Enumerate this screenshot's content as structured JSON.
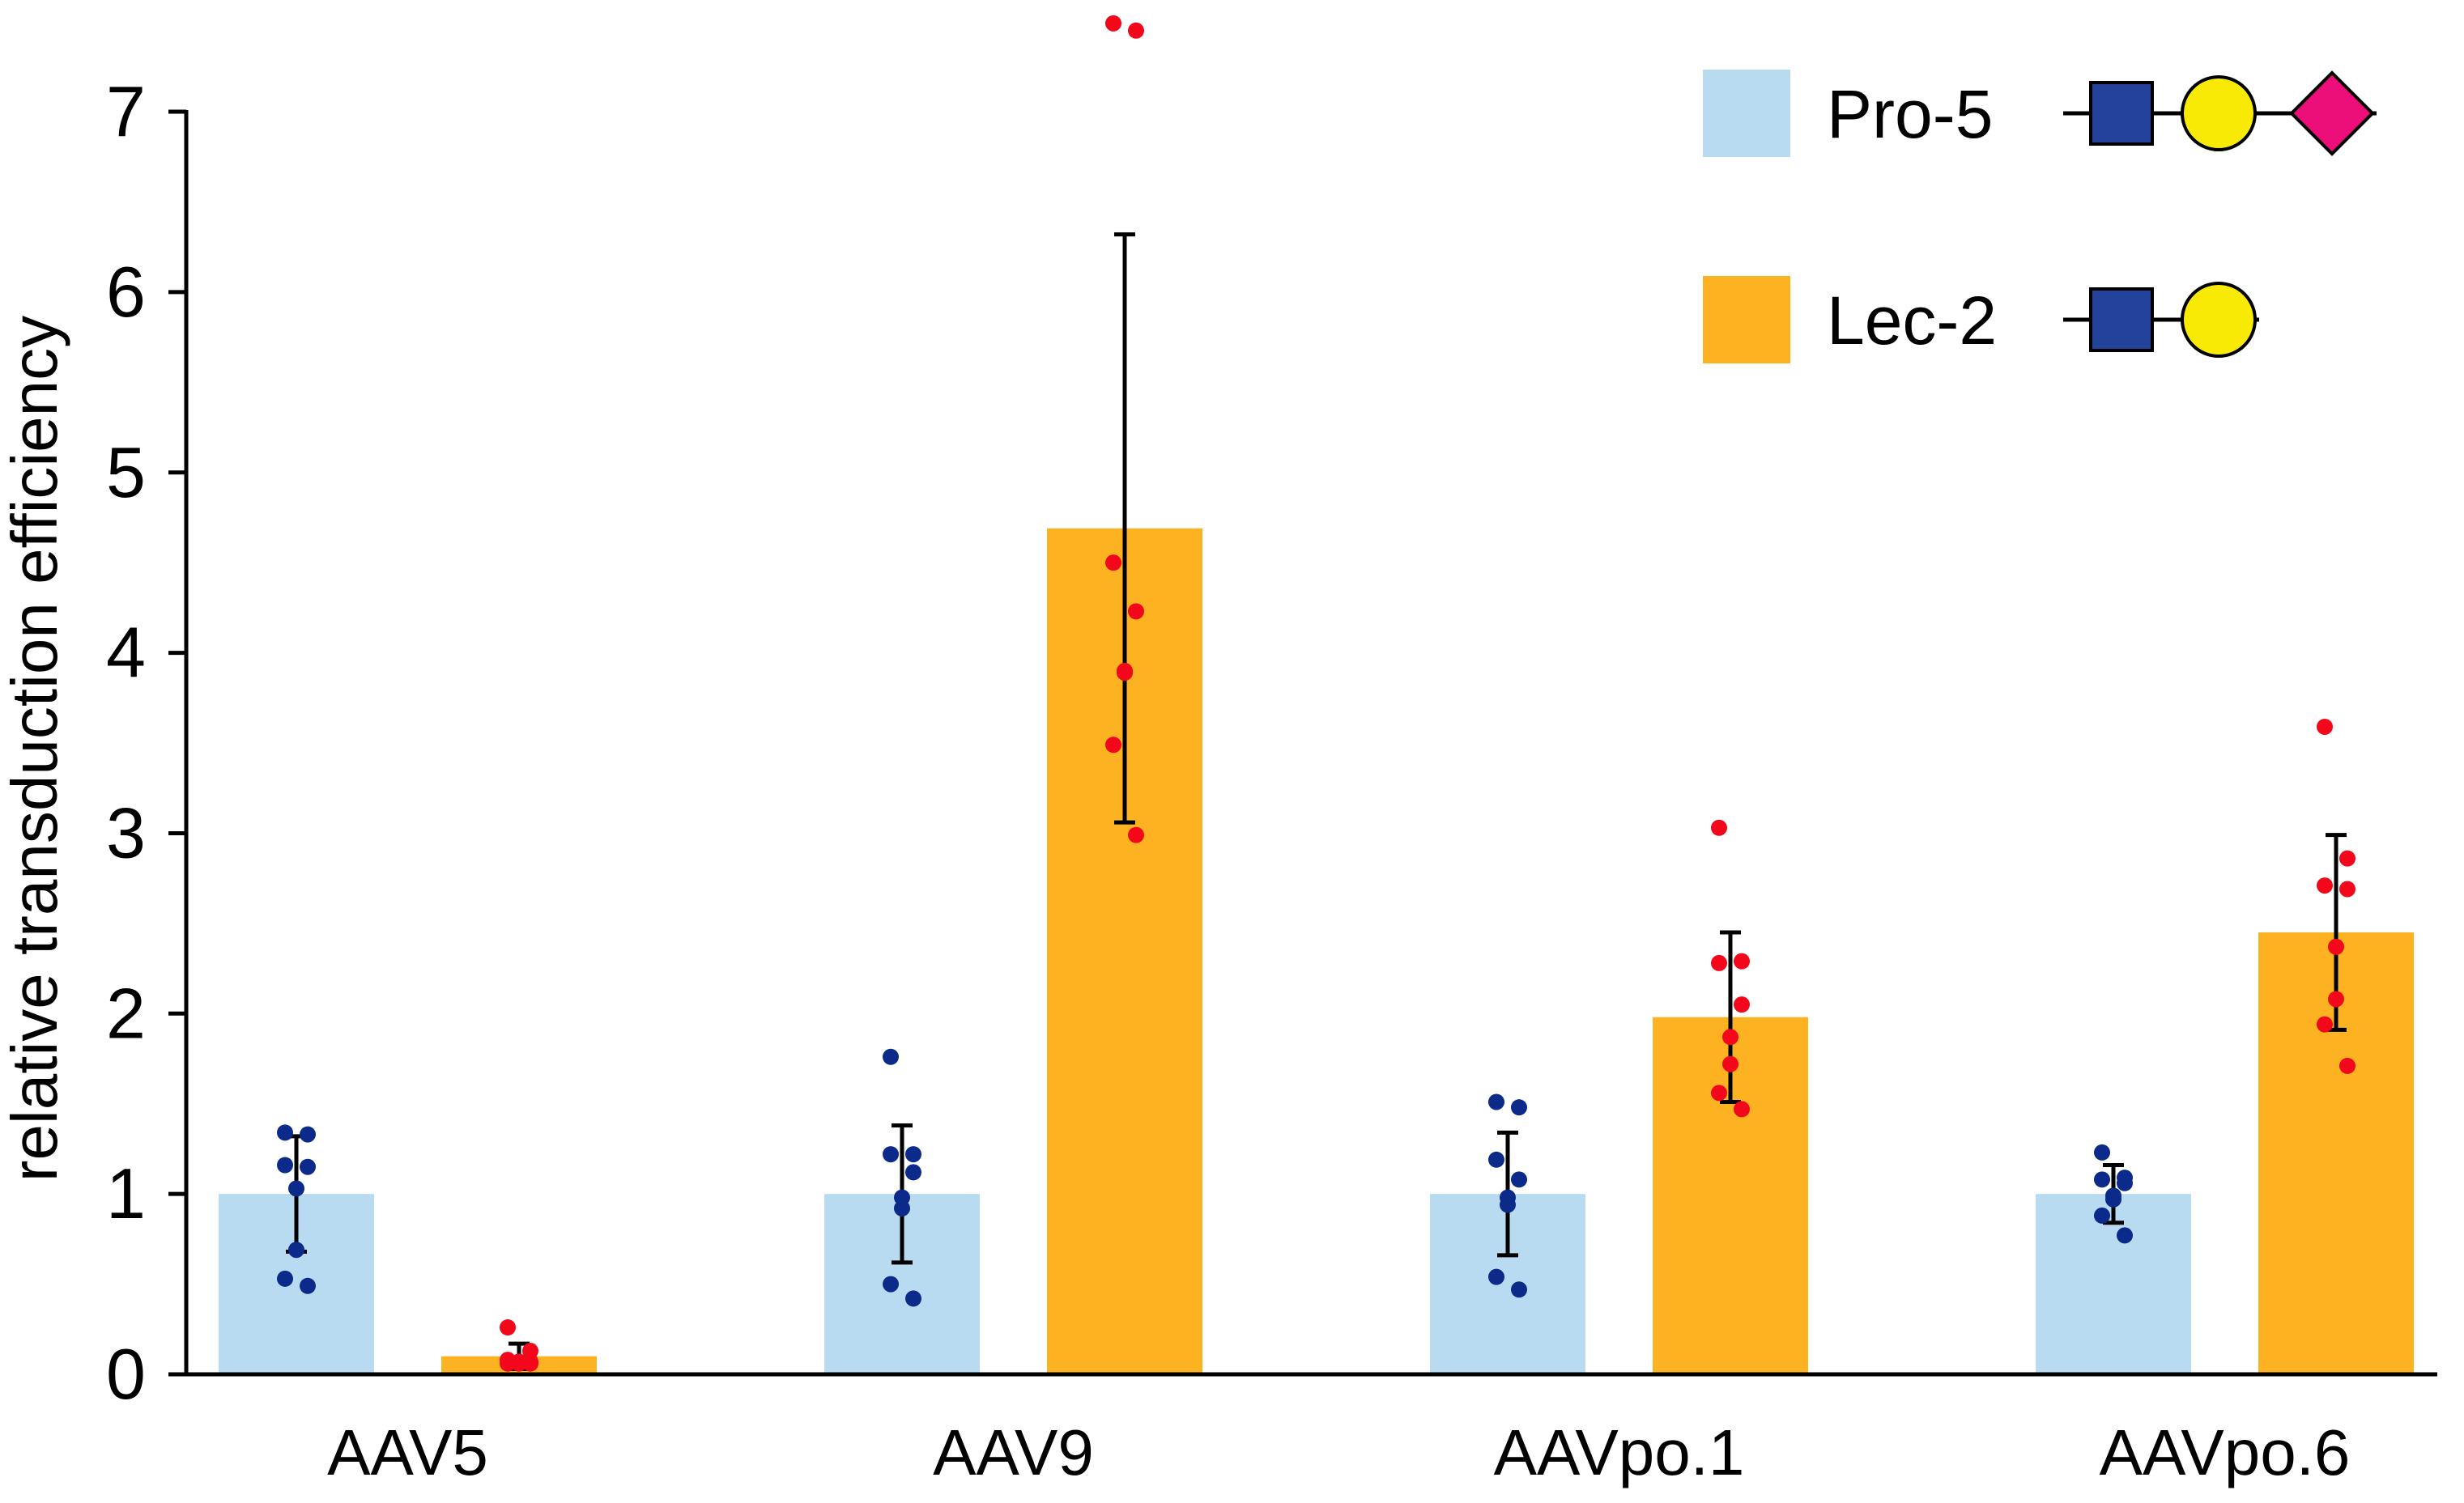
{
  "chart_data": {
    "type": "bar",
    "title": "",
    "xlabel": "",
    "ylabel": "relative transduction efficiency",
    "ylim": [
      0,
      7
    ],
    "yticks": [
      0,
      1,
      2,
      3,
      4,
      5,
      6,
      7
    ],
    "grid": false,
    "legend_position": "top-right",
    "categories": [
      "AAV5",
      "AAV9",
      "AAVpo.1",
      "AAVpo.6"
    ],
    "series": [
      {
        "name": "Pro-5",
        "color": "#b8dbf1",
        "point_color": "#0b2a8a",
        "glycan": [
          "square",
          "circle",
          "diamond"
        ],
        "values": [
          1.0,
          1.0,
          1.0,
          1.0
        ],
        "errors": [
          0.32,
          0.38,
          0.34,
          0.16
        ],
        "points": [
          [
            1.34,
            1.33,
            1.16,
            1.15,
            1.03,
            0.69,
            0.53,
            0.49
          ],
          [
            1.76,
            1.22,
            1.22,
            1.12,
            0.98,
            0.92,
            0.5,
            0.42
          ],
          [
            1.51,
            1.48,
            1.19,
            1.08,
            0.98,
            0.94,
            0.54,
            0.47
          ],
          [
            1.23,
            1.09,
            1.08,
            1.06,
            0.99,
            0.97,
            0.88,
            0.77
          ]
        ]
      },
      {
        "name": "Lec-2",
        "color": "#fdb321",
        "point_color": "#f2071b",
        "glycan": [
          "square",
          "circle"
        ],
        "values": [
          0.1,
          4.69,
          1.98,
          2.45
        ],
        "errors": [
          0.07,
          1.63,
          0.47,
          0.54
        ],
        "points": [
          [
            0.26,
            0.13,
            0.08,
            0.07,
            0.07,
            0.06,
            0.06,
            0.06
          ],
          [
            7.49,
            7.45,
            4.5,
            4.23,
            3.9,
            3.89,
            3.49,
            2.99
          ],
          [
            3.03,
            2.29,
            2.28,
            2.05,
            1.87,
            1.72,
            1.56,
            1.47
          ],
          [
            3.59,
            2.86,
            2.71,
            2.69,
            2.37,
            2.08,
            1.94,
            1.71
          ]
        ]
      }
    ]
  }
}
